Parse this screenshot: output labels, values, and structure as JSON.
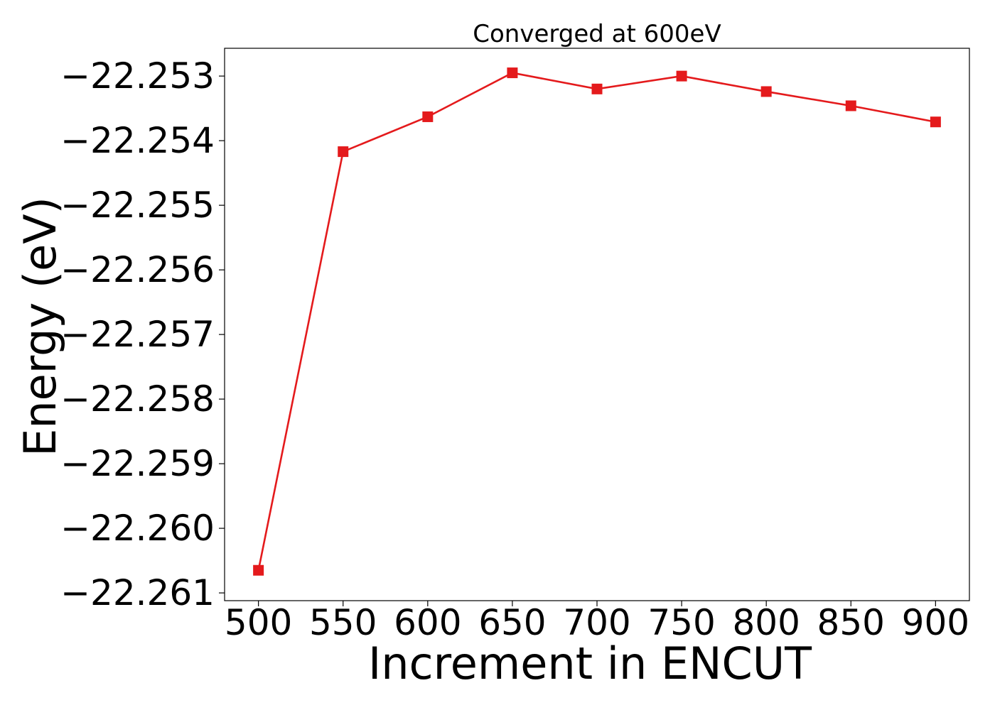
{
  "chart_data": {
    "type": "line",
    "title": "Converged at 600eV",
    "xlabel": "Increment in ENCUT",
    "ylabel": "Energy (eV)",
    "x": [
      500,
      550,
      600,
      650,
      700,
      750,
      800,
      850,
      900
    ],
    "series": [
      {
        "values": [
          -22.26065,
          -22.25417,
          -22.25363,
          -22.25295,
          -22.2532,
          -22.253,
          -22.25324,
          -22.25346,
          -22.25371
        ],
        "color": "#e41a1c",
        "marker": "square"
      }
    ],
    "xticks": [
      "500",
      "550",
      "600",
      "650",
      "700",
      "750",
      "800",
      "850",
      "900"
    ],
    "yticks": [
      {
        "value": -22.261,
        "label": "−22.261"
      },
      {
        "value": -22.26,
        "label": "−22.260"
      },
      {
        "value": -22.259,
        "label": "−22.259"
      },
      {
        "value": -22.258,
        "label": "−22.258"
      },
      {
        "value": -22.257,
        "label": "−22.257"
      },
      {
        "value": -22.256,
        "label": "−22.256"
      },
      {
        "value": -22.255,
        "label": "−22.255"
      },
      {
        "value": -22.254,
        "label": "−22.254"
      },
      {
        "value": -22.253,
        "label": "−22.253"
      }
    ],
    "xlim": [
      480,
      920
    ],
    "ylim": [
      -22.26112,
      -22.25257
    ],
    "grid": false,
    "legend": "none"
  }
}
